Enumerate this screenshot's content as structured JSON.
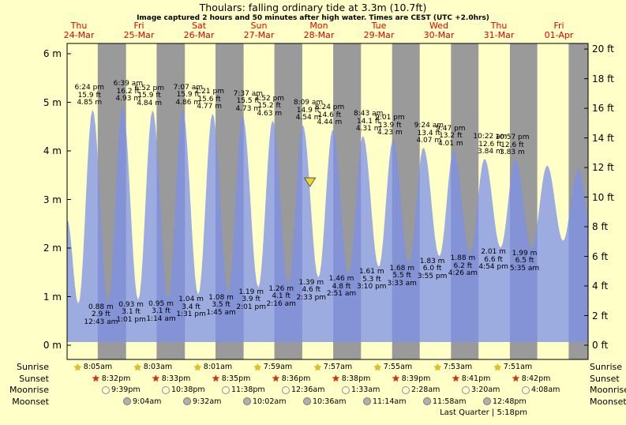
{
  "header": {
    "title": "Thoulars: falling  ordinary tide at 3.3m (10.7ft)",
    "subtitle": "Image captured 2 hours and 50 minutes after high water. Times are CEST (UTC +2.0hrs)"
  },
  "chart_data": {
    "type": "area",
    "title": "Tide height curve over nine days for Thoulars",
    "y_axis_left_labels": [
      "6 m",
      "5 m",
      "4 m",
      "3 m",
      "2 m",
      "1 m",
      "0 m"
    ],
    "y_axis_right_labels": [
      "20 ft",
      "18 ft",
      "16 ft",
      "14 ft",
      "12 ft",
      "10 ft",
      "8 ft",
      "6 ft",
      "4 ft",
      "2 ft",
      "0 ft"
    ],
    "days": [
      {
        "day": "Thu",
        "date": "24-Mar"
      },
      {
        "day": "Fri",
        "date": "25-Mar"
      },
      {
        "day": "Sat",
        "date": "26-Mar"
      },
      {
        "day": "Sun",
        "date": "27-Mar"
      },
      {
        "day": "Mon",
        "date": "28-Mar"
      },
      {
        "day": "Tue",
        "date": "29-Mar"
      },
      {
        "day": "Wed",
        "date": "30-Mar"
      },
      {
        "day": "Thu",
        "date": "31-Mar"
      },
      {
        "day": "Fri",
        "date": "01-Apr"
      }
    ],
    "time_axis_note": "t = hours from chart left edge",
    "extremes": [
      {
        "t": 0.0,
        "m": 2.6
      },
      {
        "t": 4.6,
        "m": 0.85
      },
      {
        "t": 10.4,
        "m": 4.85,
        "kind": "high",
        "lines": [
          "6:24 pm",
          "15.9 ft",
          "4.85 m"
        ]
      },
      {
        "t": 16.72,
        "m": 0.88,
        "kind": "low",
        "lines": [
          "0.88 m",
          "2.9 ft",
          "12:43 am"
        ]
      },
      {
        "t": 22.65,
        "m": 4.93,
        "kind": "high",
        "lines": [
          "6:39 am",
          "16.2 ft",
          "4.93 m"
        ]
      },
      {
        "t": 29.02,
        "m": 0.93,
        "kind": "low",
        "lines": [
          "0.93 m",
          "3.1 ft",
          "1:01 pm"
        ]
      },
      {
        "t": 34.87,
        "m": 4.84,
        "kind": "high",
        "lines": [
          "6:52 pm",
          "15.9 ft",
          "4.84 m"
        ]
      },
      {
        "t": 41.23,
        "m": 0.95,
        "kind": "low",
        "lines": [
          "0.95 m",
          "3.1 ft",
          "1:14 am"
        ]
      },
      {
        "t": 47.12,
        "m": 4.86,
        "kind": "high",
        "lines": [
          "7:07 am",
          "15.9 ft",
          "4.86 m"
        ]
      },
      {
        "t": 53.52,
        "m": 1.04,
        "kind": "low",
        "lines": [
          "1.04 m",
          "3.4 ft",
          "1:31 pm"
        ]
      },
      {
        "t": 59.35,
        "m": 4.77,
        "kind": "high",
        "lines": [
          "7:21 pm",
          "15.6 ft",
          "4.77 m"
        ]
      },
      {
        "t": 65.75,
        "m": 1.08,
        "kind": "low",
        "lines": [
          "1.08 m",
          "3.5 ft",
          "1:45 am"
        ]
      },
      {
        "t": 71.62,
        "m": 4.73,
        "kind": "high",
        "lines": [
          "7:37 am",
          "15.5 ft",
          "4.73 m"
        ]
      },
      {
        "t": 78.02,
        "m": 1.19,
        "kind": "low",
        "lines": [
          "1.19 m",
          "3.9 ft",
          "2:01 pm"
        ]
      },
      {
        "t": 83.87,
        "m": 4.63,
        "kind": "high",
        "lines": [
          "7:52 pm",
          "15.2 ft",
          "4.63 m"
        ]
      },
      {
        "t": 90.27,
        "m": 1.26,
        "kind": "low",
        "lines": [
          "1.26 m",
          "4.1 ft",
          "2:16 am"
        ]
      },
      {
        "t": 96.15,
        "m": 4.54,
        "kind": "high",
        "lines": [
          "8:09 am",
          "14.9 ft",
          "4.54 m"
        ]
      },
      {
        "t": 102.55,
        "m": 1.39,
        "kind": "low",
        "lines": [
          "1.39 m",
          "4.6 ft",
          "2:33 pm"
        ]
      },
      {
        "t": 108.4,
        "m": 4.44,
        "kind": "high",
        "lines": [
          "8:24 pm",
          "14.6 ft",
          "4.44 m"
        ]
      },
      {
        "t": 114.85,
        "m": 1.46,
        "kind": "low",
        "lines": [
          "1.46 m",
          "4.8 ft",
          "2:51 am"
        ]
      },
      {
        "t": 120.72,
        "m": 4.31,
        "kind": "high",
        "lines": [
          "8:43 am",
          "14.1 ft",
          "4.31 m"
        ]
      },
      {
        "t": 127.17,
        "m": 1.61,
        "kind": "low",
        "lines": [
          "1.61 m",
          "5.3 ft",
          "3:10 pm"
        ]
      },
      {
        "t": 133.02,
        "m": 4.23,
        "kind": "high",
        "lines": [
          "9:01 pm",
          "13.9 ft",
          "4.23 m"
        ]
      },
      {
        "t": 139.55,
        "m": 1.68,
        "kind": "low",
        "lines": [
          "1.68 m",
          "5.5 ft",
          "3:33 am"
        ]
      },
      {
        "t": 145.4,
        "m": 4.07,
        "kind": "high",
        "lines": [
          "9:24 am",
          "13.4 ft",
          "4.07 m"
        ]
      },
      {
        "t": 151.92,
        "m": 1.83,
        "kind": "low",
        "lines": [
          "1.83 m",
          "6.0 ft",
          "3:55 pm"
        ]
      },
      {
        "t": 157.78,
        "m": 4.01,
        "kind": "high",
        "lines": [
          "9:47 pm",
          "13.2 ft",
          "4.01 m"
        ]
      },
      {
        "t": 164.43,
        "m": 1.88,
        "kind": "low",
        "lines": [
          "1.88 m",
          "6.2 ft",
          "4:26 am"
        ]
      },
      {
        "t": 170.37,
        "m": 3.84,
        "kind": "high",
        "lines": [
          "10:22 am",
          "12.6 ft",
          "3.84 m"
        ]
      },
      {
        "t": 176.9,
        "m": 2.01,
        "kind": "low",
        "lines": [
          "2.01 m",
          "6.6 ft",
          "4:54 pm"
        ]
      },
      {
        "t": 182.95,
        "m": 3.83,
        "kind": "high",
        "lines": [
          "10:57 pm",
          "12.6 ft",
          "3.83 m"
        ]
      },
      {
        "t": 189.58,
        "m": 1.99,
        "kind": "low",
        "lines": [
          "1.99 m",
          "6.5 ft",
          "5:35 am"
        ]
      },
      {
        "t": 195.9,
        "m": 3.7
      },
      {
        "t": 202.4,
        "m": 2.15
      },
      {
        "t": 208.5,
        "m": 3.62
      },
      {
        "t": 215.0,
        "m": 2.1
      }
    ],
    "night_bands_t": [
      [
        12.5,
        24.08
      ],
      [
        36.53,
        48.05
      ],
      [
        60.55,
        72.02
      ],
      [
        84.6,
        95.98
      ],
      [
        108.6,
        119.95
      ],
      [
        132.63,
        143.92
      ],
      [
        156.65,
        167.88
      ],
      [
        180.68,
        191.85
      ],
      [
        204.7,
        212.6
      ]
    ],
    "current_tide_marker": {
      "t": 99.1,
      "height_m": 3.3
    },
    "colors": {
      "background": "#ffffc8",
      "night_band": "#9a9a9a",
      "tide_fill": "#7b90e8",
      "day_label": "#e60000",
      "marker_fill": "#e6d832"
    }
  },
  "astro": {
    "rows": [
      {
        "label": "Sunrise",
        "marker": "star",
        "marker_color": "#e8c400",
        "times": [
          "8:05am",
          "8:03am",
          "8:01am",
          "7:59am",
          "7:57am",
          "7:55am",
          "7:53am",
          "7:51am"
        ]
      },
      {
        "label": "Sunset",
        "marker": "star",
        "marker_color": "#d83018",
        "times": [
          "8:32pm",
          "8:33pm",
          "8:35pm",
          "8:36pm",
          "8:38pm",
          "8:39pm",
          "8:41pm",
          "8:42pm"
        ]
      },
      {
        "label": "Moonrise",
        "marker": "circle",
        "marker_color": "#ffffd8",
        "marker_border": "#909090",
        "times": [
          "9:39pm",
          "10:38pm",
          "11:38pm",
          "12:36am",
          "1:33am",
          "2:28am",
          "3:20am",
          "4:08am"
        ]
      },
      {
        "label": "Moonset",
        "marker": "circle",
        "marker_color": "#b0b0b0",
        "marker_border": "#787878",
        "times": [
          "9:04am",
          "9:32am",
          "10:02am",
          "10:36am",
          "11:14am",
          "11:58am",
          "12:48pm"
        ]
      }
    ],
    "moon_phase": "Last Quarter | 5:18pm"
  }
}
